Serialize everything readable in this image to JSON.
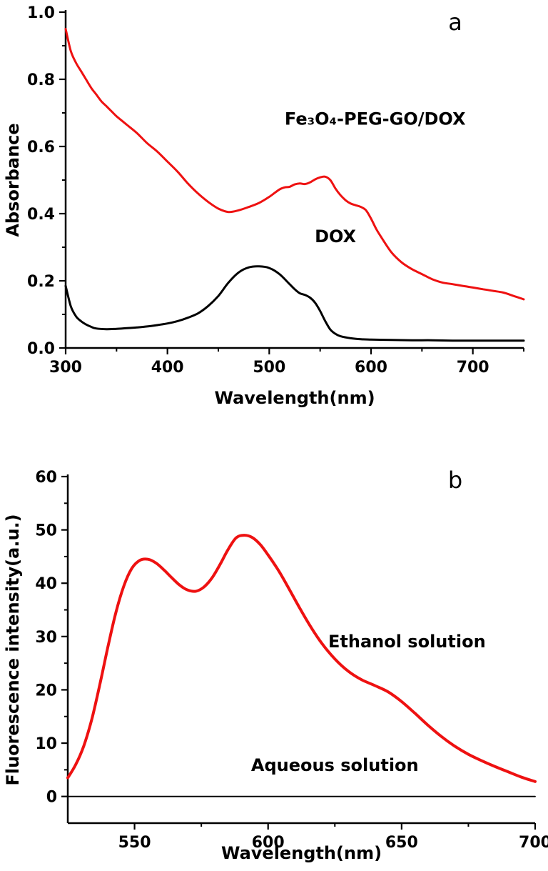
{
  "figure": {
    "background": "#ffffff",
    "axis_color": "#000000",
    "text_color": "#000000"
  },
  "chart_data": [
    {
      "type": "line",
      "panel_label": "a",
      "xlabel": "Wavelength(nm)",
      "ylabel": "Absorbance",
      "xlim": [
        300,
        750
      ],
      "ylim": [
        0,
        1.0
      ],
      "xticks": [
        300,
        400,
        500,
        600,
        700
      ],
      "xtick_labels": [
        "300",
        "400",
        "500",
        "600",
        "700"
      ],
      "xminorticks": [
        350,
        450,
        550,
        650,
        750
      ],
      "yticks": [
        0.0,
        0.2,
        0.4,
        0.6,
        0.8,
        1.0
      ],
      "ytick_labels": [
        "0.0",
        "0.2",
        "0.4",
        "0.6",
        "0.8",
        "1.0"
      ],
      "yminorticks": [
        0.1,
        0.3,
        0.5,
        0.7,
        0.9
      ],
      "grid": false,
      "legend_position": "none",
      "series": [
        {
          "name": "Fe₃O₄-PEG-GO/DOX",
          "color": "#ee1111",
          "width": 3,
          "x": [
            300,
            305,
            310,
            315,
            320,
            325,
            330,
            335,
            340,
            345,
            350,
            360,
            370,
            380,
            390,
            400,
            410,
            420,
            430,
            440,
            450,
            460,
            470,
            480,
            490,
            500,
            510,
            515,
            520,
            525,
            530,
            535,
            540,
            545,
            550,
            555,
            560,
            565,
            570,
            575,
            580,
            585,
            590,
            595,
            600,
            605,
            610,
            620,
            630,
            640,
            650,
            660,
            670,
            680,
            690,
            700,
            710,
            720,
            730,
            740,
            750
          ],
          "y": [
            0.95,
            0.885,
            0.85,
            0.825,
            0.8,
            0.775,
            0.755,
            0.735,
            0.72,
            0.705,
            0.69,
            0.665,
            0.64,
            0.61,
            0.585,
            0.555,
            0.525,
            0.49,
            0.46,
            0.435,
            0.415,
            0.405,
            0.41,
            0.42,
            0.432,
            0.45,
            0.472,
            0.478,
            0.48,
            0.487,
            0.49,
            0.488,
            0.493,
            0.502,
            0.508,
            0.51,
            0.5,
            0.475,
            0.455,
            0.44,
            0.43,
            0.425,
            0.42,
            0.41,
            0.385,
            0.355,
            0.33,
            0.285,
            0.255,
            0.235,
            0.22,
            0.205,
            0.195,
            0.19,
            0.185,
            0.18,
            0.175,
            0.17,
            0.165,
            0.155,
            0.145
          ]
        },
        {
          "name": "DOX",
          "color": "#000000",
          "width": 3,
          "x": [
            300,
            305,
            310,
            315,
            320,
            325,
            330,
            340,
            350,
            360,
            370,
            380,
            390,
            400,
            410,
            420,
            430,
            440,
            450,
            460,
            470,
            480,
            490,
            500,
            510,
            520,
            525,
            530,
            535,
            540,
            545,
            550,
            555,
            560,
            565,
            570,
            580,
            590,
            600,
            620,
            640,
            660,
            680,
            700,
            720,
            750
          ],
          "y": [
            0.185,
            0.125,
            0.095,
            0.08,
            0.07,
            0.063,
            0.058,
            0.056,
            0.057,
            0.059,
            0.061,
            0.064,
            0.068,
            0.073,
            0.08,
            0.09,
            0.103,
            0.125,
            0.155,
            0.195,
            0.225,
            0.24,
            0.243,
            0.238,
            0.22,
            0.19,
            0.175,
            0.163,
            0.158,
            0.15,
            0.135,
            0.11,
            0.08,
            0.055,
            0.042,
            0.035,
            0.029,
            0.026,
            0.025,
            0.024,
            0.023,
            0.023,
            0.022,
            0.022,
            0.022,
            0.022
          ]
        }
      ],
      "annotations": [
        {
          "text": "Fe₃O₄-PEG-GO/DOX",
          "x": 604,
          "y": 0.665,
          "color": "#000000"
        },
        {
          "text": "DOX",
          "x": 565,
          "y": 0.315,
          "color": "#000000"
        }
      ]
    },
    {
      "type": "line",
      "panel_label": "b",
      "xlabel": "Wavelength(nm)",
      "ylabel": "Fluorescence intensity(a.u.)",
      "xlim": [
        525,
        700
      ],
      "ylim": [
        -5,
        60
      ],
      "xticks": [
        550,
        600,
        650,
        700
      ],
      "xtick_labels": [
        "550",
        "600",
        "650",
        "700"
      ],
      "xminorticks": [
        575,
        625,
        675
      ],
      "yticks": [
        0,
        10,
        20,
        30,
        40,
        50,
        60
      ],
      "ytick_labels": [
        "0",
        "10",
        "20",
        "30",
        "40",
        "50",
        "60"
      ],
      "yminorticks": [
        5,
        15,
        25,
        35,
        45,
        55
      ],
      "grid": false,
      "legend_position": "none",
      "series": [
        {
          "name": "Ethanol solution",
          "color": "#ee1111",
          "width": 4,
          "x": [
            525,
            528,
            531,
            534,
            537,
            540,
            543,
            546,
            549,
            552,
            555,
            558,
            561,
            564,
            567,
            570,
            573,
            576,
            579,
            582,
            585,
            588,
            591,
            594,
            597,
            600,
            604,
            608,
            612,
            616,
            620,
            625,
            630,
            635,
            640,
            645,
            650,
            655,
            660,
            665,
            670,
            675,
            680,
            685,
            690,
            695,
            700
          ],
          "y": [
            3.5,
            6,
            9.5,
            14.5,
            21,
            28,
            34.5,
            39.5,
            42.8,
            44.3,
            44.5,
            43.8,
            42.5,
            41,
            39.6,
            38.7,
            38.5,
            39.3,
            41,
            43.5,
            46.3,
            48.5,
            49,
            48.6,
            47.3,
            45.3,
            42.3,
            38.8,
            35.2,
            31.8,
            28.8,
            25.8,
            23.5,
            21.9,
            20.8,
            19.6,
            17.8,
            15.6,
            13.3,
            11.2,
            9.4,
            7.9,
            6.7,
            5.6,
            4.6,
            3.6,
            2.8
          ]
        },
        {
          "name": "Aqueous solution",
          "color": "#000000",
          "width": 1.8,
          "x": [
            525,
            700
          ],
          "y": [
            0,
            0
          ]
        }
      ],
      "annotations": [
        {
          "text": "Ethanol solution",
          "x": 652,
          "y": 28,
          "color": "#000000"
        },
        {
          "text": "Aqueous solution",
          "x": 625,
          "y": 4.8,
          "color": "#000000"
        }
      ]
    }
  ]
}
